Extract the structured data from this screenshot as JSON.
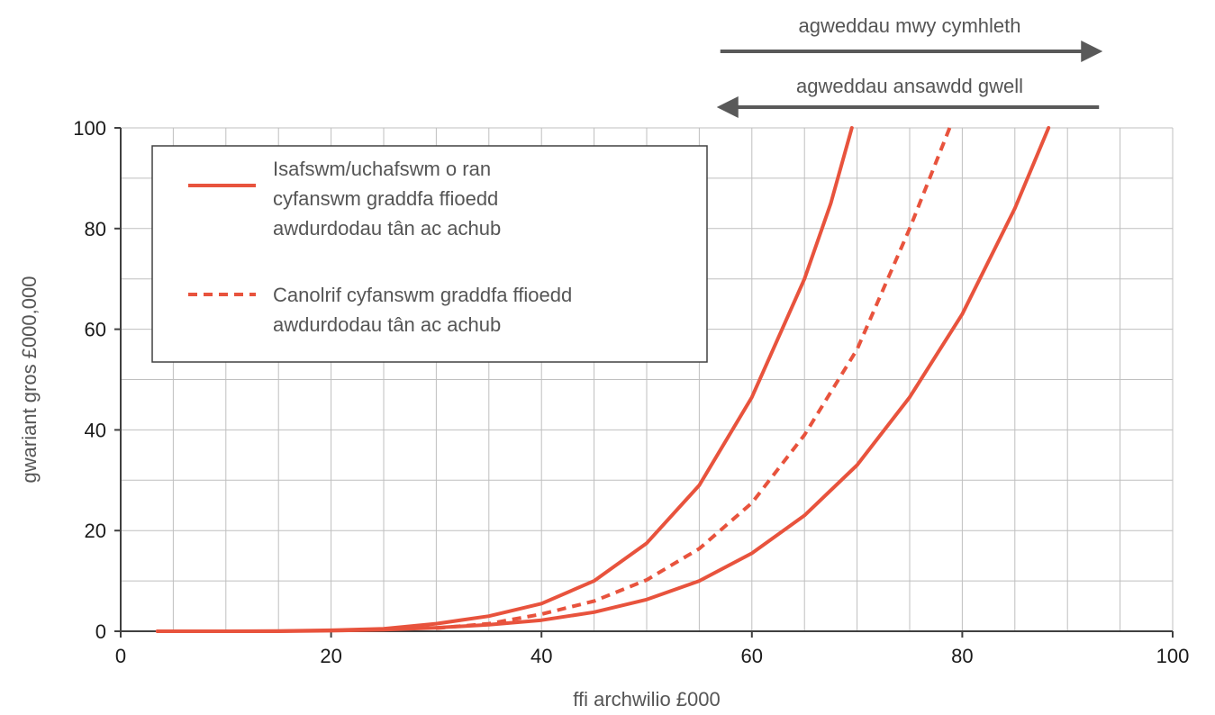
{
  "chart_data": {
    "type": "line",
    "title": "",
    "xlabel": "ffi archwilio £000",
    "ylabel": "gwariant gros £000,000",
    "xlim": [
      0,
      100
    ],
    "ylim": [
      0,
      100
    ],
    "x_ticks": [
      "0",
      "20",
      "40",
      "60",
      "80",
      "100"
    ],
    "y_ticks": [
      "0",
      "20",
      "40",
      "60",
      "80",
      "100"
    ],
    "grid": true,
    "legend_position": "top-left",
    "legend": [
      {
        "lines": [
          "Isafswm/uchafswm o ran",
          "cyfanswm graddfa ffioedd",
          "awdurdodau tân ac achub"
        ],
        "style": "solid"
      },
      {
        "lines": [
          "Canolrif cyfanswm graddfa ffioedd",
          "awdurdodau tân ac achub"
        ],
        "style": "dashed"
      }
    ],
    "annotations": [
      {
        "text": "agweddau mwy cymhleth",
        "direction": "right",
        "x_from": 57,
        "x_to": 93
      },
      {
        "text": "agweddau ansawdd gwell",
        "direction": "left",
        "x_from": 93,
        "x_to": 57
      }
    ],
    "series": [
      {
        "style": "solid",
        "color": "#e8533d",
        "x": [
          3.5,
          10,
          15,
          20,
          25,
          30,
          35,
          40,
          45,
          50,
          55,
          60,
          65,
          67.5,
          69.5
        ],
        "y": [
          0,
          0,
          0.05,
          0.2,
          0.5,
          1.5,
          3,
          5.5,
          10,
          17.5,
          29,
          46.5,
          70,
          85,
          100
        ]
      },
      {
        "style": "solid",
        "color": "#e8533d",
        "x": [
          3.5,
          10,
          15,
          20,
          25,
          30,
          35,
          40,
          45,
          50,
          55,
          60,
          65,
          70,
          75,
          80,
          85,
          88.2
        ],
        "y": [
          0,
          0,
          0,
          0.1,
          0.3,
          0.7,
          1.3,
          2.2,
          3.8,
          6.3,
          10,
          15.5,
          23,
          33,
          46.5,
          63,
          84,
          100
        ]
      },
      {
        "style": "dashed",
        "color": "#e8533d",
        "x": [
          30,
          35,
          40,
          45,
          50,
          55,
          60,
          65,
          70,
          75,
          78.8
        ],
        "y": [
          0.6,
          1.5,
          3.4,
          6,
          10.2,
          16.4,
          25.5,
          39,
          56,
          80,
          100
        ]
      }
    ]
  }
}
